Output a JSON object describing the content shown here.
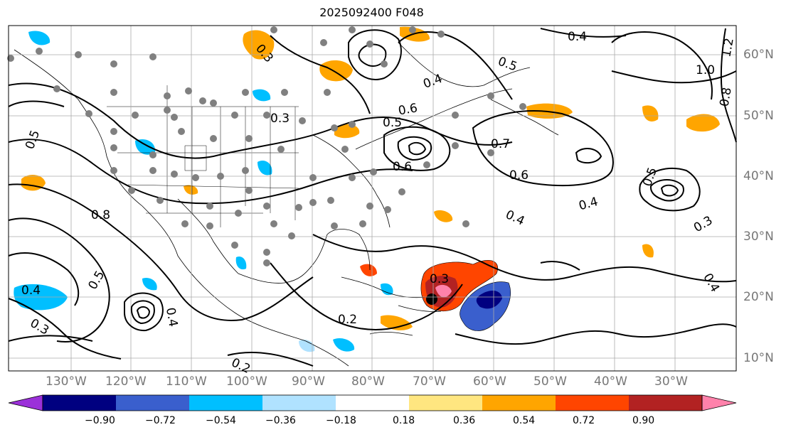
{
  "title": "2025092400 F048",
  "lat_labels": [
    "60°N",
    "50°N",
    "40°N",
    "30°N",
    "20°N",
    "10°N"
  ],
  "lon_labels": [
    "130°W",
    "120°W",
    "110°W",
    "100°W",
    "90°W",
    "80°W",
    "70°W",
    "60°W",
    "50°W",
    "40°W",
    "30°W"
  ],
  "colorbar": {
    "ticks": [
      "−0.90",
      "−0.72",
      "−0.54",
      "−0.36",
      "−0.18",
      "0.18",
      "0.36",
      "0.54",
      "0.72",
      "0.90"
    ],
    "colors": [
      "#9b30d9",
      "#000080",
      "#3a5fcd",
      "#00bfff",
      "#b0e2ff",
      "#ffffff",
      "#ffe680",
      "#ffa500",
      "#ff4500",
      "#b22222",
      "#ff82ab"
    ]
  },
  "contour_labels": [
    {
      "text": "0.4"
    },
    {
      "text": "1.0"
    },
    {
      "text": "0.8"
    },
    {
      "text": "1.2"
    },
    {
      "text": "0.5"
    },
    {
      "text": "0.3"
    },
    {
      "text": "0.5"
    },
    {
      "text": "0.4"
    },
    {
      "text": "0.5"
    },
    {
      "text": "0.7"
    },
    {
      "text": "0.6"
    },
    {
      "text": "0.6"
    },
    {
      "text": "0.4"
    },
    {
      "text": "0.4"
    },
    {
      "text": "0.5"
    },
    {
      "text": "0.3"
    },
    {
      "text": "0.8"
    },
    {
      "text": "0.4"
    },
    {
      "text": "0.3"
    },
    {
      "text": "0.3"
    },
    {
      "text": "0.2"
    },
    {
      "text": "0.2"
    },
    {
      "text": "0.4"
    },
    {
      "text": "0.5"
    },
    {
      "text": "0.3"
    },
    {
      "text": "0.6"
    },
    {
      "text": "0.4"
    }
  ]
}
